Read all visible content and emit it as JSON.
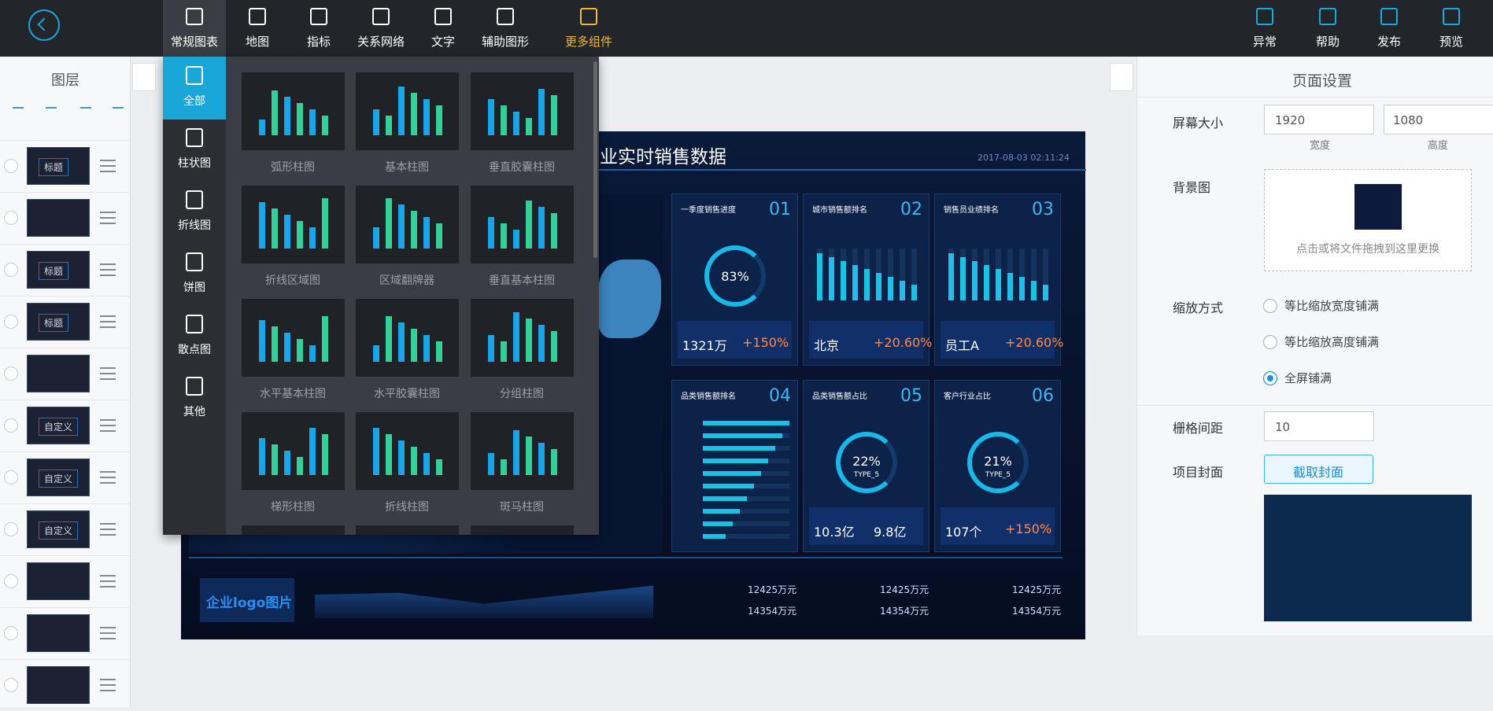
{
  "toolbar": {
    "items": [
      "常规图表",
      "地图",
      "指标",
      "关系网络",
      "文字",
      "辅助图形",
      "更多组件"
    ],
    "right_items": [
      "异常",
      "帮助",
      "发布",
      "预览"
    ]
  },
  "layers_panel": {
    "title": "图层",
    "layers": [
      "标题",
      null,
      "标题",
      "标题",
      null,
      "自定义",
      "自定义",
      "自定义",
      null,
      null,
      null
    ]
  },
  "menu": {
    "categories": [
      "全部",
      "柱状图",
      "折线图",
      "饼图",
      "散点图",
      "其他"
    ],
    "items": [
      "弧形柱图",
      "基本柱图",
      "垂直胶囊柱图",
      "折线区域图",
      "区域翻牌器",
      "垂直基本柱图",
      "水平基本柱图",
      "水平胶囊柱图",
      "分组柱图",
      "梯形柱图",
      "折线柱图",
      "斑马柱图"
    ]
  },
  "dashboard": {
    "title": "业实时销售数据",
    "date": "2017-08-03 02:11:24",
    "cards": [
      {
        "title": "一季度销售进度",
        "num": "01",
        "center": "83%",
        "stats": [
          "1321万",
          "+150%"
        ]
      },
      {
        "title": "城市销售额排名",
        "num": "02",
        "stats": [
          "北京",
          "+20.60%"
        ]
      },
      {
        "title": "销售员业绩排名",
        "num": "03",
        "stats": [
          "员工A",
          "+20.60%"
        ]
      },
      {
        "title": "品类销售额排名",
        "num": "04"
      },
      {
        "title": "品类销售额占比",
        "num": "05",
        "center": "22%",
        "sub": "TYPE_5",
        "stats": [
          "10.3亿",
          "9.8亿"
        ]
      },
      {
        "title": "客户行业占比",
        "num": "06",
        "center": "21%",
        "sub": "TYPE_5",
        "stats": [
          "107个",
          "+150%"
        ]
      }
    ],
    "logo": "企业logo图片",
    "totals": [
      "12425万元",
      "14354万元",
      "12425万元",
      "14354万元",
      "12425万元",
      "14354万元"
    ]
  },
  "settings": {
    "title": "页面设置",
    "screen_label": "屏幕大小",
    "width": "1920",
    "height": "1080",
    "width_label": "宽度",
    "height_label": "高度",
    "bg_label": "背景图",
    "upload_hint": "点击或将文件拖拽到这里更换",
    "scale_label": "缩放方式",
    "scale_options": [
      "等比缩放宽度铺满",
      "等比缩放高度铺满",
      "全屏铺满"
    ],
    "grid_label": "栅格间距",
    "grid_value": "10",
    "cover_label": "项目封面",
    "cover_button": "截取封面"
  }
}
